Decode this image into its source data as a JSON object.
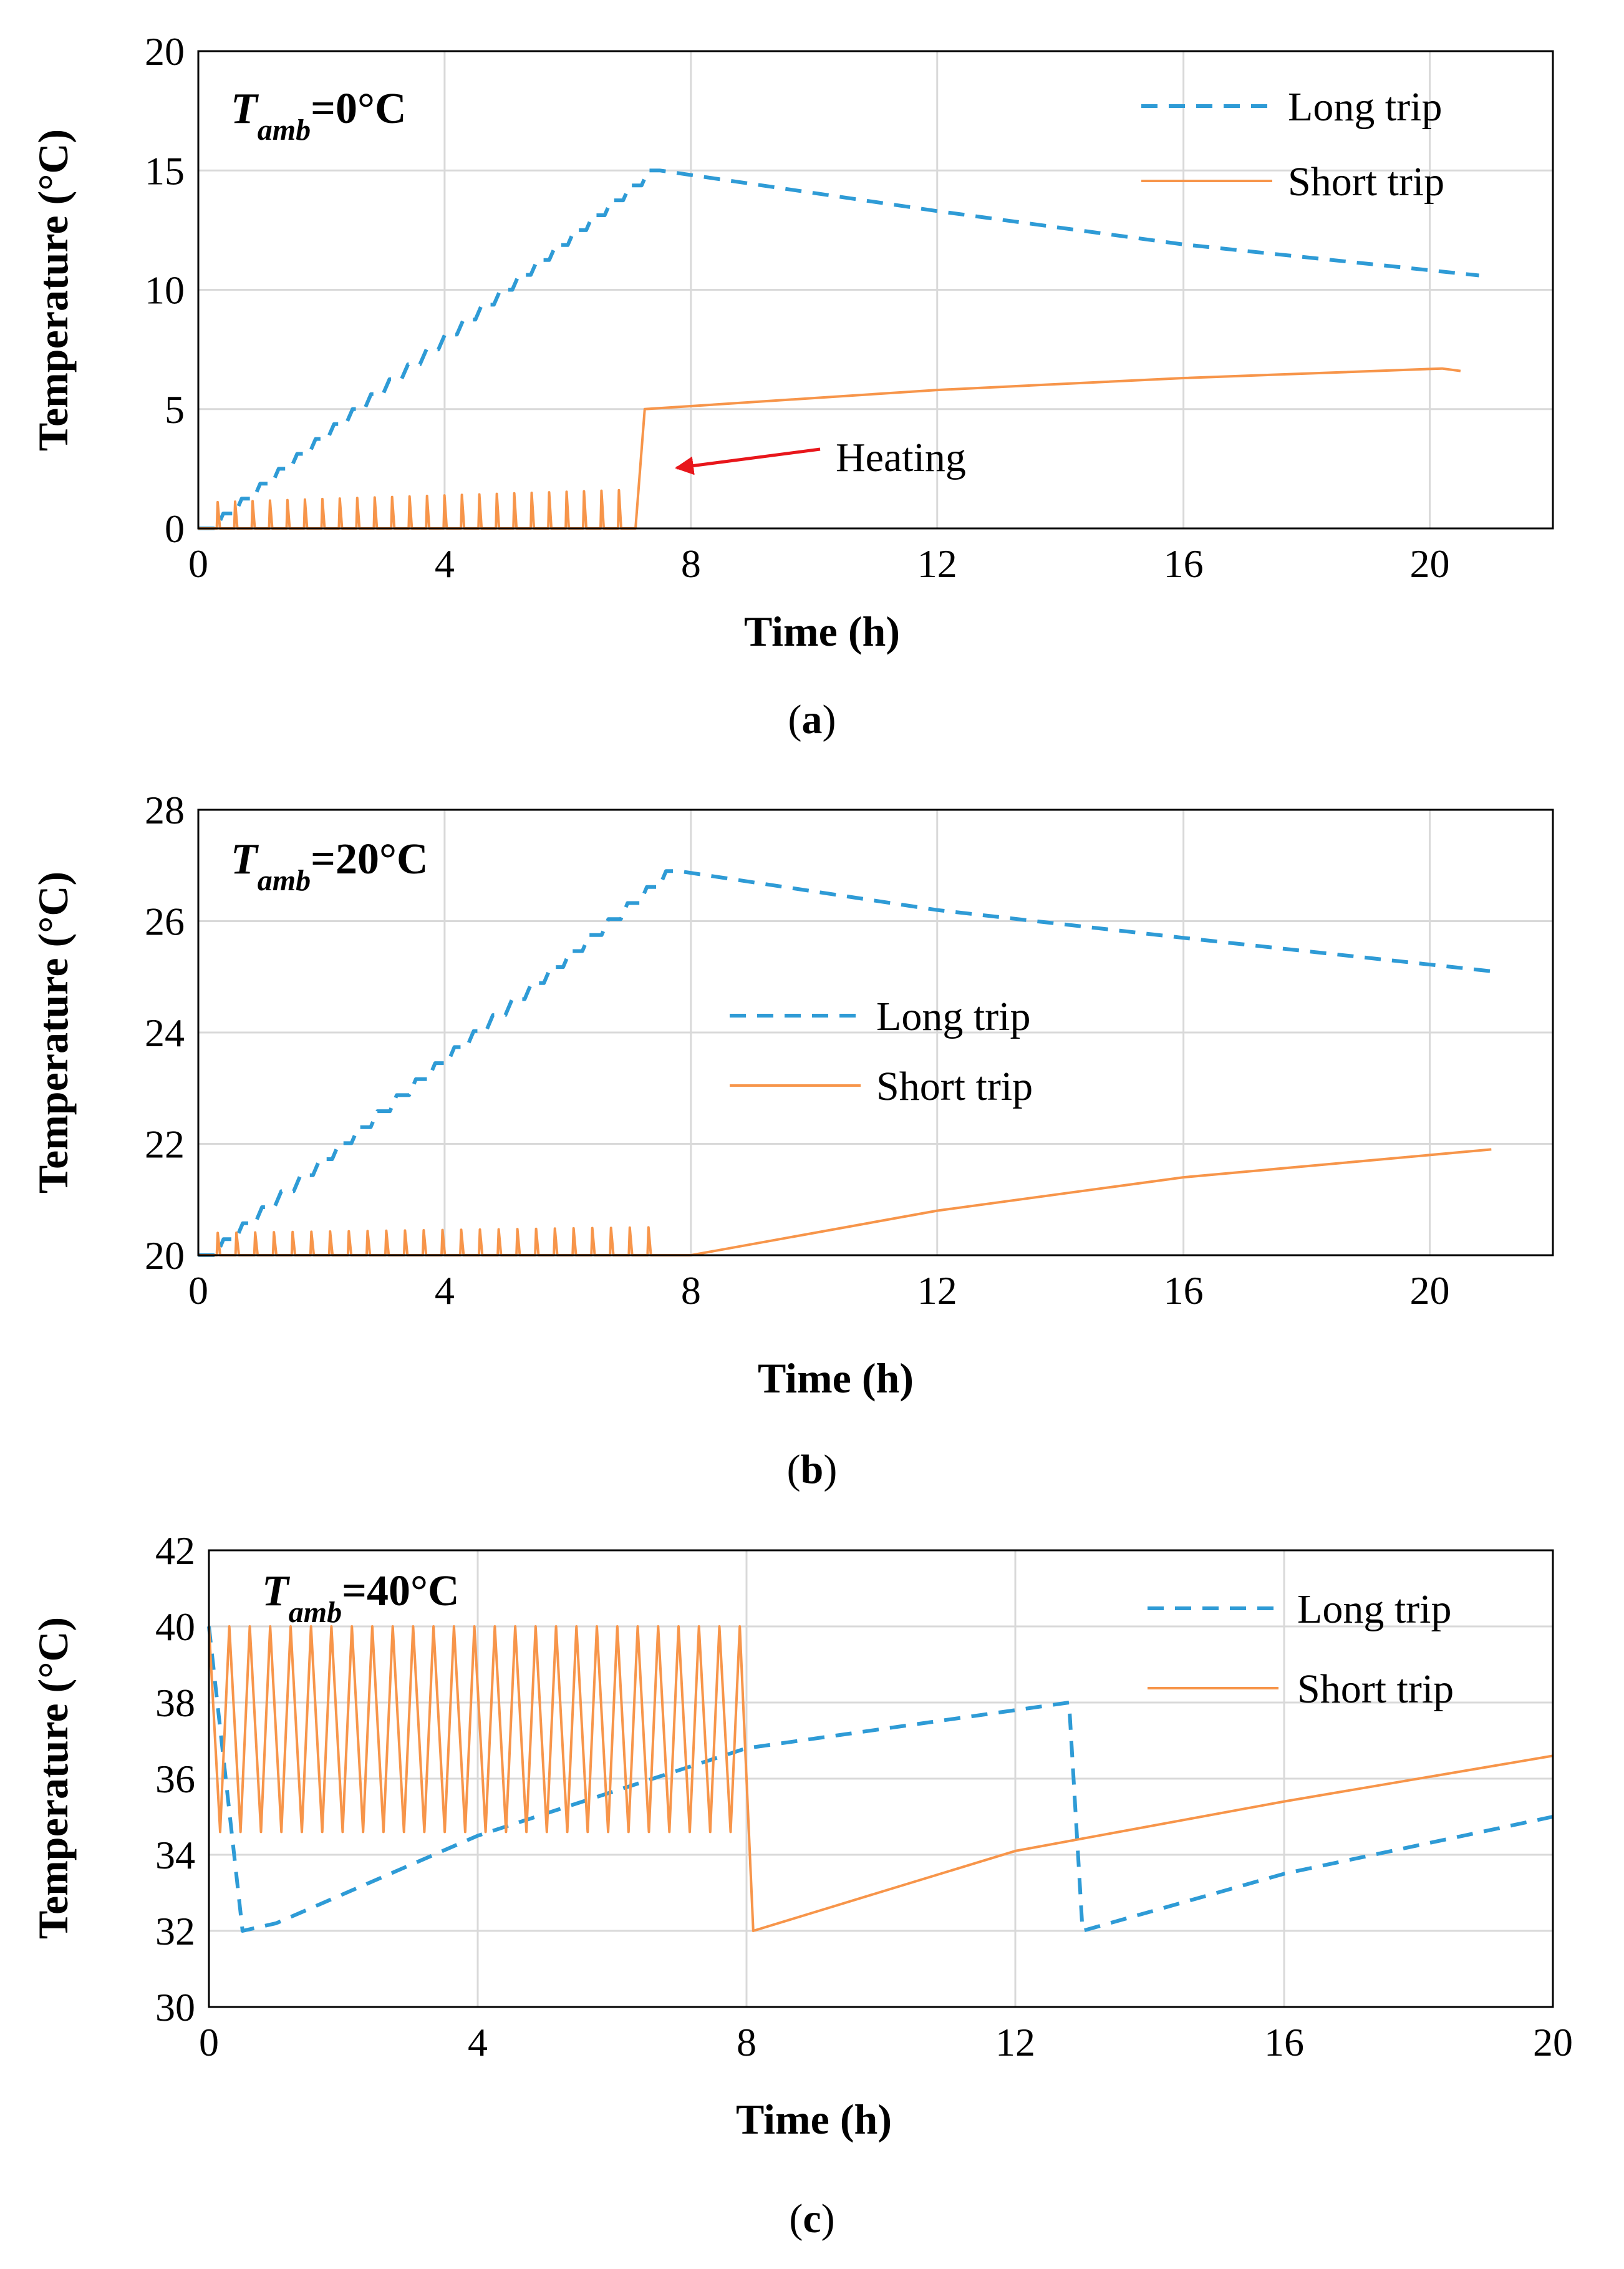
{
  "colors": {
    "long": "#2E9BD6",
    "short": "#F7954A",
    "arrow": "#E8161B",
    "grid": "#D9D9D9",
    "frame": "#000000"
  },
  "chart_data": [
    {
      "type": "line",
      "panel": "a",
      "caption": {
        "open": "(",
        "letter": "a",
        "close": ")"
      },
      "annotation_tamb": {
        "T": "T",
        "sub": "amb",
        "rest": "=0°C"
      },
      "xlabel": "Time (h)",
      "ylabel": "Temperature (°C)",
      "xlim": [
        0,
        22
      ],
      "ylim": [
        0,
        20
      ],
      "xticks": [
        0,
        4,
        8,
        12,
        16,
        20
      ],
      "yticks": [
        0,
        5,
        10,
        15,
        20
      ],
      "legend_position": "top-right",
      "legend": [
        {
          "name": "Long trip",
          "style": "dashed"
        },
        {
          "name": "Short trip",
          "style": "solid"
        }
      ],
      "text_annotation": {
        "label": "Heating",
        "points_to": [
          7.35,
          2.6
        ]
      },
      "series": [
        {
          "name": "Long trip",
          "style": "dashed",
          "kind": "staircase",
          "rise": {
            "t0": 0.3,
            "v0": 0,
            "t1": 7.5,
            "v1": 15,
            "steps": 24
          },
          "decay": [
            [
              7.5,
              15
            ],
            [
              12,
              13.3
            ],
            [
              16,
              11.9
            ],
            [
              20.8,
              10.6
            ]
          ]
        },
        {
          "name": "Short trip",
          "style": "solid",
          "kind": "spikes-then-curve",
          "spikes": {
            "t0": 0.3,
            "t1": 7.1,
            "count": 24,
            "base": 0,
            "peak_start": 1.1,
            "peak_end": 1.6
          },
          "jump": [
            [
              7.1,
              0
            ],
            [
              7.25,
              5
            ]
          ],
          "tail": [
            [
              7.25,
              5
            ],
            [
              12,
              5.8
            ],
            [
              16,
              6.3
            ],
            [
              20.2,
              6.7
            ],
            [
              20.5,
              6.6
            ]
          ]
        }
      ]
    },
    {
      "type": "line",
      "panel": "b",
      "caption": {
        "open": "(",
        "letter": "b",
        "close": ")"
      },
      "annotation_tamb": {
        "T": "T",
        "sub": "amb",
        "rest": "=20°C"
      },
      "xlabel": "Time (h)",
      "ylabel": "Temperature (°C)",
      "xlim": [
        0,
        22
      ],
      "ylim": [
        20,
        28
      ],
      "xticks": [
        0,
        4,
        8,
        12,
        16,
        20
      ],
      "yticks": [
        20,
        22,
        24,
        26,
        28
      ],
      "legend_position": "center",
      "legend": [
        {
          "name": "Long trip",
          "style": "dashed"
        },
        {
          "name": "Short trip",
          "style": "solid"
        }
      ],
      "series": [
        {
          "name": "Long trip",
          "style": "dashed",
          "kind": "staircase",
          "rise": {
            "t0": 0.3,
            "v0": 20,
            "t1": 7.8,
            "v1": 26.9,
            "steps": 24
          },
          "decay": [
            [
              7.8,
              26.9
            ],
            [
              12,
              26.2
            ],
            [
              16,
              25.7
            ],
            [
              21,
              25.1
            ]
          ]
        },
        {
          "name": "Short trip",
          "style": "solid",
          "kind": "spikes-then-curve",
          "spikes": {
            "t0": 0.3,
            "t1": 7.6,
            "count": 24,
            "base": 20,
            "peak_start": 20.4,
            "peak_end": 20.5
          },
          "jump": [
            [
              7.6,
              20
            ],
            [
              8.0,
              20
            ]
          ],
          "tail": [
            [
              8.0,
              20
            ],
            [
              12,
              20.8
            ],
            [
              16,
              21.4
            ],
            [
              21,
              21.9
            ]
          ]
        }
      ]
    },
    {
      "type": "line",
      "panel": "c",
      "caption": {
        "open": "(",
        "letter": "c",
        "close": ")"
      },
      "annotation_tamb": {
        "T": "T",
        "sub": "amb",
        "rest": "=40°C"
      },
      "xlabel": "Time (h)",
      "ylabel": "Temperature (°C)",
      "xlim": [
        0,
        20
      ],
      "ylim": [
        30,
        42
      ],
      "xticks": [
        0,
        4,
        8,
        12,
        16,
        20
      ],
      "yticks": [
        30,
        32,
        34,
        36,
        38,
        40,
        42
      ],
      "legend_position": "top-right",
      "legend": [
        {
          "name": "Long trip",
          "style": "dashed"
        },
        {
          "name": "Short trip",
          "style": "solid"
        }
      ],
      "series": [
        {
          "name": "Long trip",
          "style": "dashed",
          "kind": "polyline",
          "points": [
            [
              0,
              40
            ],
            [
              0.5,
              32
            ],
            [
              1,
              32.2
            ],
            [
              4,
              34.5
            ],
            [
              8,
              36.8
            ],
            [
              12.8,
              38
            ],
            [
              13,
              32
            ],
            [
              16,
              33.5
            ],
            [
              20,
              35
            ]
          ]
        },
        {
          "name": "Short trip",
          "style": "solid",
          "kind": "sawtooth",
          "sawtooth": {
            "t0": 0,
            "t1": 7.9,
            "count": 26,
            "low": 34.6,
            "high": 40
          },
          "jump": [
            [
              7.9,
              40
            ],
            [
              8.1,
              32
            ]
          ],
          "tail": [
            [
              8.1,
              32
            ],
            [
              12,
              34.1
            ],
            [
              16,
              35.4
            ],
            [
              20,
              36.6
            ]
          ]
        }
      ]
    }
  ]
}
